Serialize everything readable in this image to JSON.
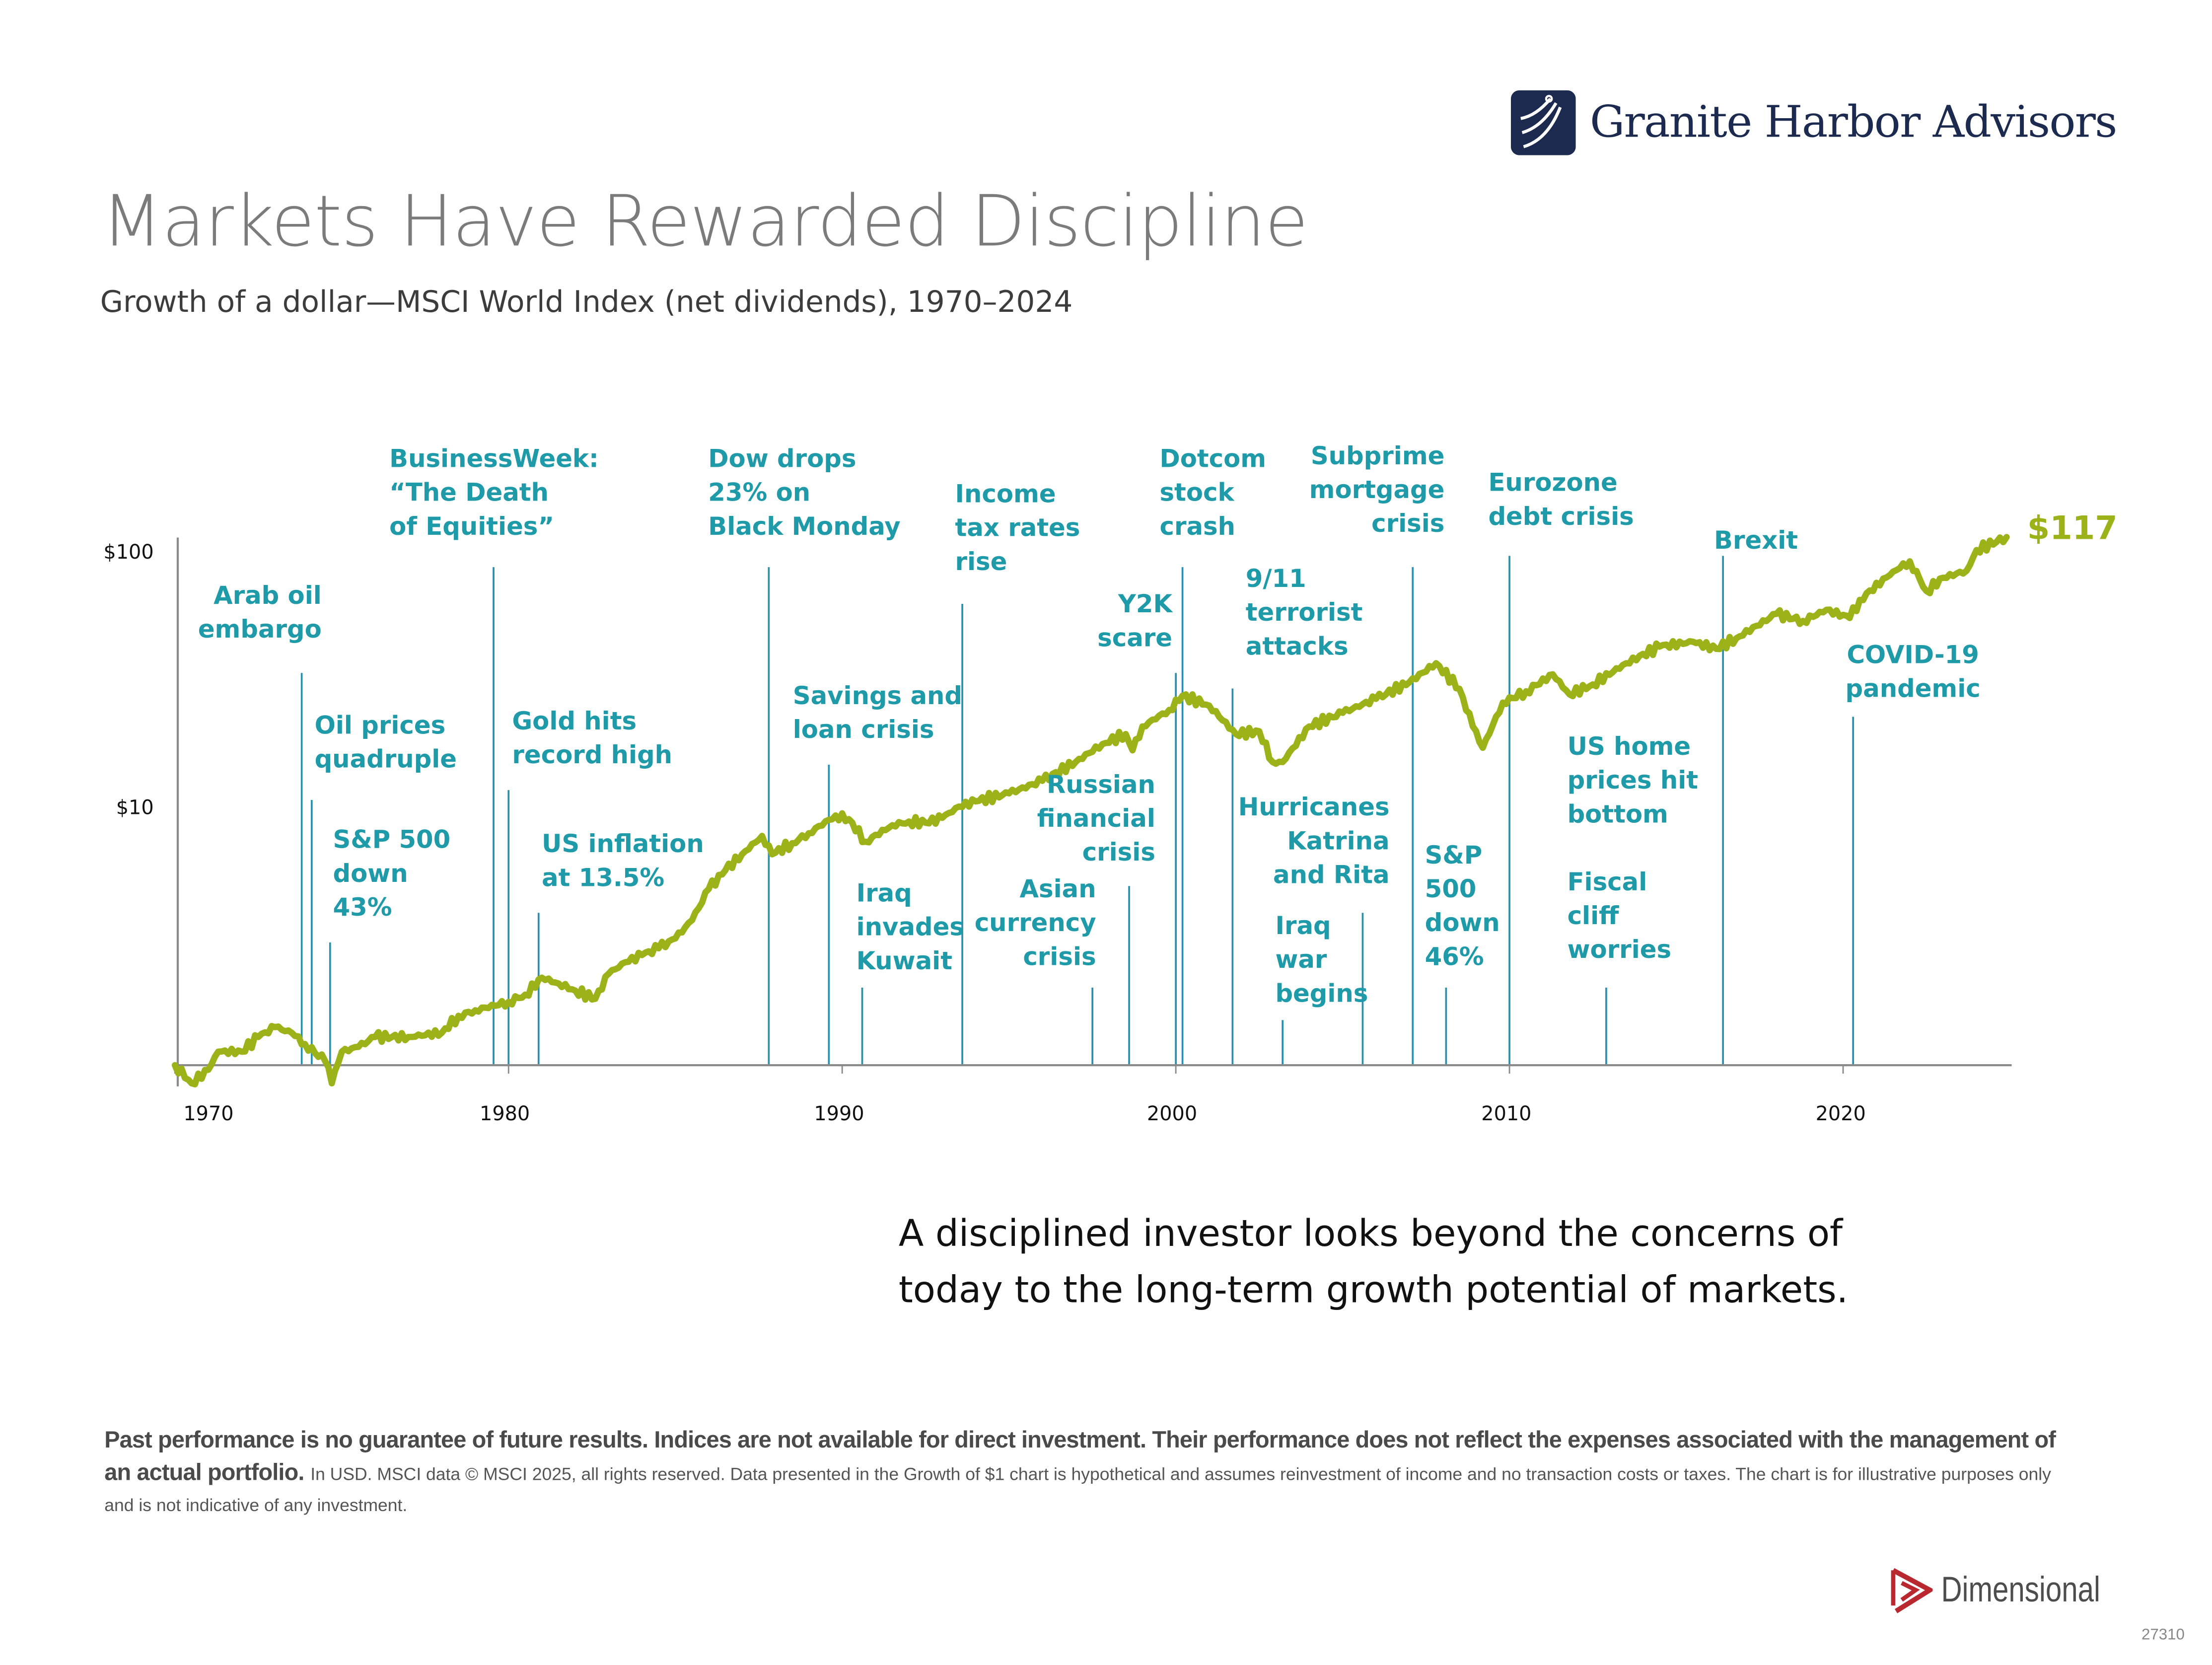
{
  "brand": {
    "name": "Granite Harbor Advisors",
    "footer_logo": "Dimensional",
    "code": "27310"
  },
  "header": {
    "title": "Markets Have Rewarded Discipline",
    "subtitle": "Growth of a dollar—MSCI World Index (net dividends), 1970–2024"
  },
  "quote": "A disciplined investor looks beyond the concerns of\ntoday to the long-term growth potential of markets.",
  "disclaimer": {
    "bold": "Past performance is no guarantee of future results. Indices are not available for direct investment. Their performance does not reflect the expenses associated with the management of an actual portfolio.",
    "small": "In USD. MSCI data © MSCI 2025, all rights reserved. Data presented in the Growth of $1 chart is hypothetical and assumes reinvestment of income and no transaction costs or taxes. The chart is for illustrative purposes only and is not indicative of any investment."
  },
  "colors": {
    "line": "#9bb318",
    "event": "#2a8fb0",
    "label": "#1f9aa8",
    "axis": "#8a8a8a",
    "navy": "#1b2a4e",
    "red": "#b8282e"
  },
  "chart_data": {
    "type": "line",
    "title": "Growth of a dollar—MSCI World Index (net dividends), 1970–2024",
    "yscale": "log",
    "ylim": [
      0.8,
      130
    ],
    "xlim": [
      1970,
      2025
    ],
    "yticks": [
      {
        "value": 100,
        "label": "$100"
      },
      {
        "value": 10,
        "label": "$10"
      }
    ],
    "xticks": [
      {
        "value": 1970,
        "label": "1970"
      },
      {
        "value": 1980,
        "label": "1980"
      },
      {
        "value": 1990,
        "label": "1990"
      },
      {
        "value": 2000,
        "label": "2000"
      },
      {
        "value": 2010,
        "label": "2010"
      },
      {
        "value": 2020,
        "label": "2020"
      }
    ],
    "end_label": "$117",
    "series": [
      {
        "name": "MSCI World Index (net dividends)",
        "x": [
          1970.0,
          1970.5,
          1971.0,
          1971.3,
          1972.0,
          1972.5,
          1973.0,
          1973.5,
          1973.9,
          1974.5,
          1974.7,
          1975.0,
          1975.5,
          1976.0,
          1977.0,
          1978.0,
          1978.5,
          1979.0,
          1980.0,
          1980.5,
          1981.0,
          1981.5,
          1982.0,
          1982.6,
          1983.0,
          1983.5,
          1984.0,
          1984.5,
          1985.0,
          1985.5,
          1986.0,
          1986.5,
          1987.0,
          1987.6,
          1987.9,
          1988.5,
          1989.0,
          1989.8,
          1990.2,
          1990.7,
          1991.5,
          1992.0,
          1992.5,
          1993.0,
          1993.5,
          1994.0,
          1995.0,
          1996.0,
          1997.0,
          1997.8,
          1998.5,
          1998.7,
          1999.0,
          1999.8,
          2000.2,
          2001.0,
          2001.8,
          2002.5,
          2002.9,
          2003.2,
          2004.0,
          2005.0,
          2006.0,
          2007.0,
          2007.8,
          2008.5,
          2008.9,
          2009.2,
          2009.8,
          2010.5,
          2011.3,
          2011.8,
          2012.5,
          2013.5,
          2014.5,
          2015.5,
          2016.2,
          2016.8,
          2018.0,
          2018.8,
          2019.5,
          2020.2,
          2020.5,
          2021.5,
          2022.0,
          2022.5,
          2023.0,
          2023.7,
          2024.0,
          2024.9
        ],
        "y": [
          1.0,
          0.85,
          0.96,
          1.13,
          1.13,
          1.29,
          1.41,
          1.34,
          1.21,
          1.04,
          0.85,
          1.13,
          1.18,
          1.29,
          1.29,
          1.34,
          1.56,
          1.64,
          1.77,
          1.89,
          2.2,
          2.09,
          1.96,
          1.82,
          2.28,
          2.53,
          2.7,
          2.87,
          3.14,
          3.7,
          4.9,
          5.8,
          6.7,
          7.9,
          6.7,
          7.4,
          8.1,
          9.5,
          9.2,
          7.5,
          8.7,
          9.0,
          8.9,
          9.3,
          10.3,
          10.8,
          11.6,
          13.0,
          15.4,
          18.1,
          19.8,
          17.1,
          21.2,
          24.6,
          28.0,
          25.6,
          19.8,
          20.3,
          15.4,
          15.4,
          21.2,
          24.0,
          27.2,
          31.6,
          37.5,
          29.8,
          21.2,
          17.5,
          26.3,
          29.1,
          33.9,
          28.3,
          31.0,
          37.5,
          43.6,
          45.5,
          42.7,
          47.0,
          58.5,
          54.9,
          60.7,
          56.4,
          66.4,
          85.7,
          93.9,
          71.9,
          81.1,
          86.3,
          104,
          117
        ]
      }
    ],
    "events": [
      {
        "year": 1973.8,
        "label": "Arab oil\nembargo"
      },
      {
        "year": 1974.1,
        "label": "Oil prices\nquadruple"
      },
      {
        "year": 1974.65,
        "label": "S&P 500\ndown\n43%"
      },
      {
        "year": 1979.55,
        "label": "BusinessWeek:\n“The Death\nof Equities”"
      },
      {
        "year": 1980.0,
        "label": "Gold hits\nrecord high"
      },
      {
        "year": 1980.9,
        "label": "US inflation\nat 13.5%"
      },
      {
        "year": 1987.8,
        "label": "Dow drops\n23% on\nBlack Monday"
      },
      {
        "year": 1989.6,
        "label": "Savings and\nloan crisis"
      },
      {
        "year": 1990.6,
        "label": "Iraq\ninvades\nKuwait"
      },
      {
        "year": 1993.6,
        "label": "Income\ntax rates\nrise"
      },
      {
        "year": 1997.5,
        "label": "Asian\ncurrency\ncrisis"
      },
      {
        "year": 1998.6,
        "label": "Russian\nfinancial\ncrisis"
      },
      {
        "year": 2000.0,
        "label": "Y2K\nscare"
      },
      {
        "year": 2000.2,
        "label": "Dotcom\nstock\ncrash"
      },
      {
        "year": 2001.7,
        "label": "9/11\nterrorist\nattacks"
      },
      {
        "year": 2003.2,
        "label": "Iraq\nwar\nbegins"
      },
      {
        "year": 2005.6,
        "label": "Hurricanes\nKatrina\nand Rita"
      },
      {
        "year": 2007.1,
        "label": "Subprime\nmortgage\ncrisis"
      },
      {
        "year": 2008.1,
        "label": "S&P\n500\ndown\n46%"
      },
      {
        "year": 2010.0,
        "label": "Eurozone\ndebt crisis"
      },
      {
        "year": 2012.9,
        "label": "Fiscal\ncliff\nworries"
      },
      {
        "year": 2016.4,
        "label": "Brexit"
      },
      {
        "year": 2020.3,
        "label": "COVID-19\npandemic"
      },
      {
        "year": null,
        "label": "US home\nprices hit\nbottom"
      }
    ]
  }
}
